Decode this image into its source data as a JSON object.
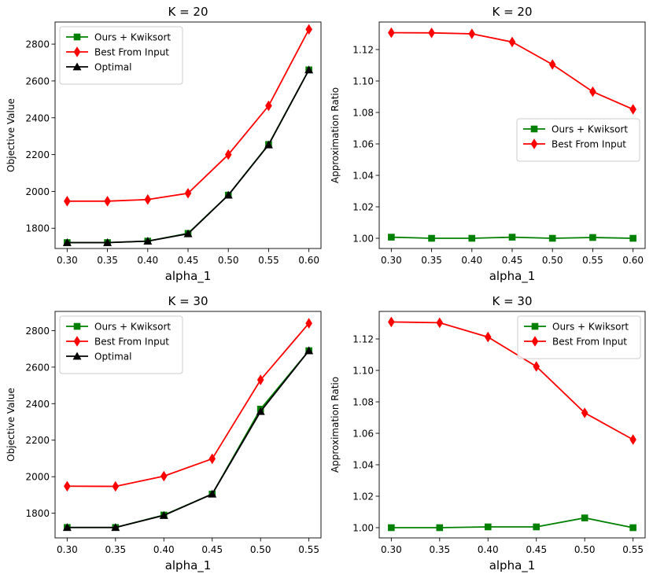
{
  "chart_data": [
    {
      "type": "line",
      "title": "K = 20",
      "xlabel": "alpha_1",
      "ylabel": "Objective Value",
      "x": [
        0.3,
        0.35,
        0.4,
        0.45,
        0.5,
        0.55,
        0.6
      ],
      "xticks": [
        "0.30",
        "0.35",
        "0.40",
        "0.45",
        "0.50",
        "0.55",
        "0.60"
      ],
      "xlim": [
        0.285,
        0.615
      ],
      "ylim": [
        1690,
        2920
      ],
      "yticks": [
        "1800",
        "2000",
        "2200",
        "2400",
        "2600",
        "2800"
      ],
      "legend_position": "upper-left",
      "series": [
        {
          "name": "Ours + Kwiksort",
          "color": "#008000",
          "marker": "square",
          "values": [
            1722,
            1722,
            1730,
            1772,
            1980,
            2255,
            2660
          ]
        },
        {
          "name": "Best From Input",
          "color": "#ff0000",
          "marker": "diamond",
          "values": [
            1947,
            1947,
            1956,
            1990,
            2200,
            2465,
            2880
          ]
        },
        {
          "name": "Optimal",
          "color": "#000000",
          "marker": "triangle",
          "values": [
            1722,
            1722,
            1730,
            1770,
            1980,
            2253,
            2660
          ]
        }
      ]
    },
    {
      "type": "line",
      "title": "K = 20",
      "xlabel": "alpha_1",
      "ylabel": "Approximation Ratio",
      "x": [
        0.3,
        0.35,
        0.4,
        0.45,
        0.5,
        0.55,
        0.6
      ],
      "xticks": [
        "0.30",
        "0.35",
        "0.40",
        "0.45",
        "0.50",
        "0.55",
        "0.60"
      ],
      "xlim": [
        0.285,
        0.615
      ],
      "ylim": [
        0.9935,
        1.1375
      ],
      "yticks": [
        "1.00",
        "1.02",
        "1.04",
        "1.06",
        "1.08",
        "1.10",
        "1.12"
      ],
      "legend_position": "center-right",
      "series": [
        {
          "name": "Ours + Kwiksort",
          "color": "#008000",
          "marker": "square",
          "values": [
            1.0007,
            1.0,
            1.0,
            1.0007,
            1.0,
            1.0005,
            1.0
          ]
        },
        {
          "name": "Best From Input",
          "color": "#ff0000",
          "marker": "diamond",
          "values": [
            1.1307,
            1.1306,
            1.13,
            1.1248,
            1.1105,
            1.0932,
            1.082
          ]
        }
      ]
    },
    {
      "type": "line",
      "title": "K = 30",
      "xlabel": "alpha_1",
      "ylabel": "Objective Value",
      "x": [
        0.3,
        0.35,
        0.4,
        0.45,
        0.5,
        0.55
      ],
      "xticks": [
        "0.30",
        "0.35",
        "0.40",
        "0.45",
        "0.50",
        "0.55"
      ],
      "xlim": [
        0.2875,
        0.5625
      ],
      "ylim": [
        1665,
        2905
      ],
      "yticks": [
        "1800",
        "2000",
        "2200",
        "2400",
        "2600",
        "2800"
      ],
      "legend_position": "upper-left",
      "series": [
        {
          "name": "Ours + Kwiksort",
          "color": "#008000",
          "marker": "square",
          "values": [
            1722,
            1722,
            1790,
            1905,
            2370,
            2690
          ]
        },
        {
          "name": "Best From Input",
          "color": "#ff0000",
          "marker": "diamond",
          "values": [
            1948,
            1947,
            2003,
            2098,
            2530,
            2840
          ]
        },
        {
          "name": "Optimal",
          "color": "#000000",
          "marker": "triangle",
          "values": [
            1722,
            1722,
            1788,
            1905,
            2357,
            2690
          ]
        }
      ]
    },
    {
      "type": "line",
      "title": "K = 30",
      "xlabel": "alpha_1",
      "ylabel": "Approximation Ratio",
      "x": [
        0.3,
        0.35,
        0.4,
        0.45,
        0.5,
        0.55
      ],
      "xticks": [
        "0.30",
        "0.35",
        "0.40",
        "0.45",
        "0.50",
        "0.55"
      ],
      "xlim": [
        0.2875,
        0.5625
      ],
      "ylim": [
        0.9935,
        1.1375
      ],
      "yticks": [
        "1.00",
        "1.02",
        "1.04",
        "1.06",
        "1.08",
        "1.10",
        "1.12"
      ],
      "legend_position": "upper-right",
      "series": [
        {
          "name": "Ours + Kwiksort",
          "color": "#008000",
          "marker": "square",
          "values": [
            1.0,
            1.0,
            1.0005,
            1.0005,
            1.0062,
            1.0
          ]
        },
        {
          "name": "Best From Input",
          "color": "#ff0000",
          "marker": "diamond",
          "values": [
            1.1308,
            1.1303,
            1.1212,
            1.1025,
            1.073,
            1.056
          ]
        }
      ]
    }
  ]
}
